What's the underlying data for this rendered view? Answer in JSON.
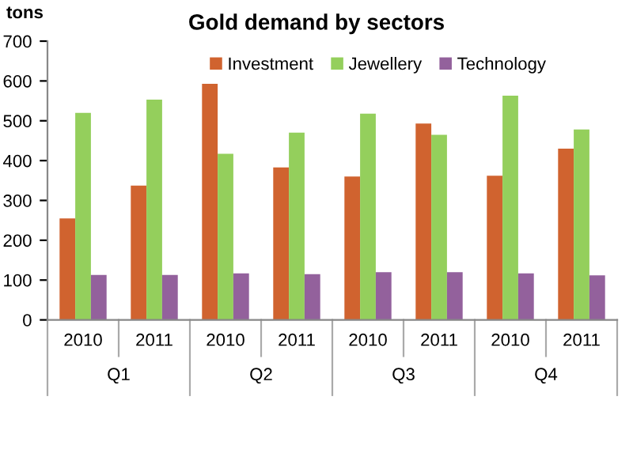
{
  "chart_data": {
    "type": "bar",
    "title": "Gold demand by sectors",
    "ylabel": "tons",
    "categories": [
      "2010",
      "2011",
      "2010",
      "2011",
      "2010",
      "2011",
      "2010",
      "2011"
    ],
    "annotations": [
      "Q1",
      "Q2",
      "Q3",
      "Q4"
    ],
    "series": [
      {
        "name": "Investment",
        "color": "#d0632f",
        "values": [
          255,
          337,
          593,
          383,
          360,
          493,
          362,
          430
        ]
      },
      {
        "name": "Jewellery",
        "color": "#94cf5c",
        "values": [
          520,
          553,
          417,
          470,
          518,
          465,
          563,
          478
        ]
      },
      {
        "name": "Technology",
        "color": "#93619c",
        "values": [
          113,
          113,
          117,
          115,
          120,
          120,
          117,
          112
        ]
      }
    ],
    "ylim": [
      0,
      700
    ],
    "yticks": [
      0,
      100,
      200,
      300,
      400,
      500,
      600,
      700
    ],
    "grid": false,
    "legend": "top"
  }
}
